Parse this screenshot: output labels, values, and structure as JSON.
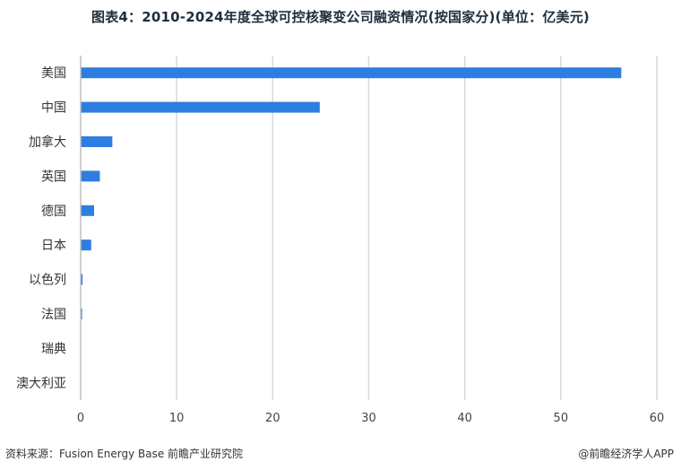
{
  "title": "图表4：2010-2024年度全球可控核聚变公司融资情况(按国家分)(单位：亿美元)",
  "footer": {
    "source": "资料来源：Fusion Energy Base 前瞻产业研究院",
    "brand": "@前瞻经济学人APP"
  },
  "colors": {
    "bar": "#2e7de1",
    "grid": "#d9d9d9",
    "axis": "#bfbfbf"
  },
  "chart_data": {
    "type": "bar",
    "orientation": "horizontal",
    "title": "图表4：2010-2024年度全球可控核聚变公司融资情况(按国家分)(单位：亿美元)",
    "categories": [
      "美国",
      "中国",
      "加拿大",
      "英国",
      "德国",
      "日本",
      "以色列",
      "法国",
      "瑞典",
      "澳大利亚"
    ],
    "values": [
      56.3,
      24.9,
      3.3,
      2.0,
      1.4,
      1.1,
      0.2,
      0.15,
      0.02,
      0.01
    ],
    "xlim": [
      0,
      60
    ],
    "xticks": [
      0,
      10,
      20,
      30,
      40,
      50,
      60
    ],
    "grid": true,
    "legend": "none"
  }
}
